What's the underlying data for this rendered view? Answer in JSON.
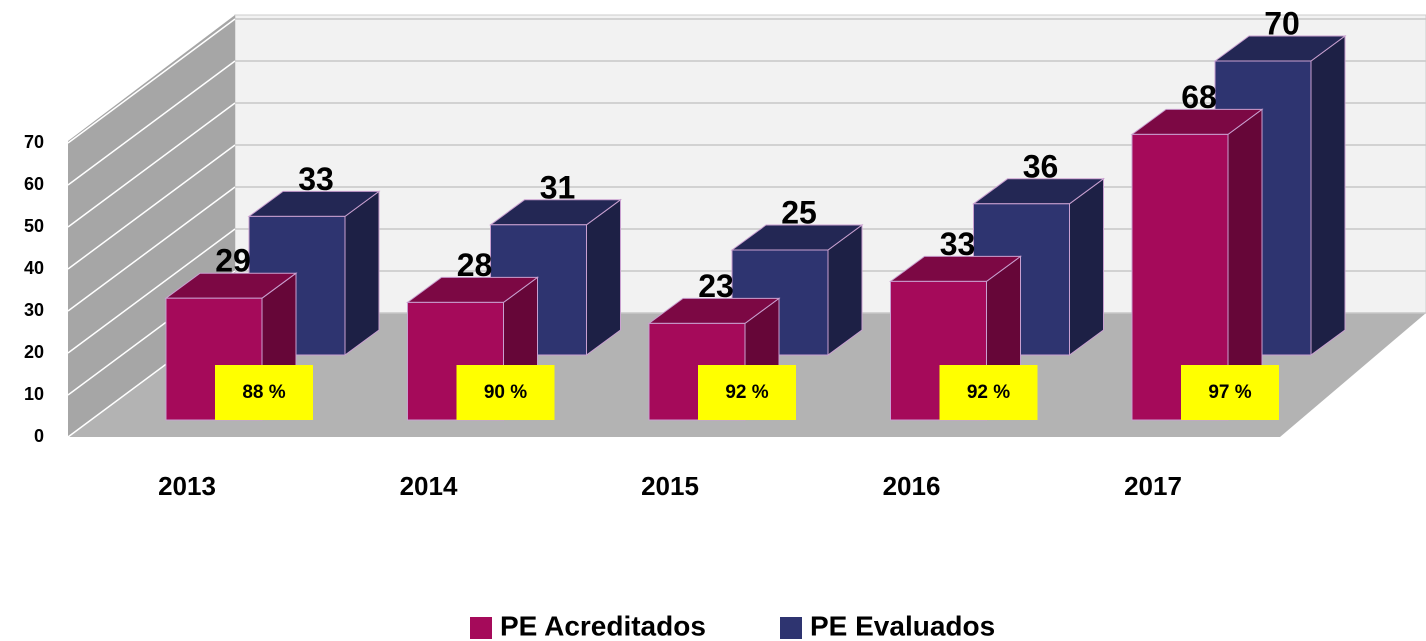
{
  "chart_data": {
    "type": "bar3d",
    "categories": [
      "2013",
      "2014",
      "2015",
      "2016",
      "2017"
    ],
    "series": [
      {
        "name": "PE Acreditados",
        "color": "#a50a5a",
        "values": [
          29,
          28,
          23,
          33,
          68
        ]
      },
      {
        "name": "PE Evaluados",
        "color": "#2e3470",
        "values": [
          33,
          31,
          25,
          36,
          70
        ]
      }
    ],
    "annotations": [
      "88 %",
      "90 %",
      "92 %",
      "92 %",
      "97 %"
    ],
    "ylim": [
      0,
      70
    ],
    "yticks": [
      0,
      10,
      20,
      30,
      40,
      50,
      60,
      70
    ],
    "grid": true,
    "legend": "bottom"
  }
}
